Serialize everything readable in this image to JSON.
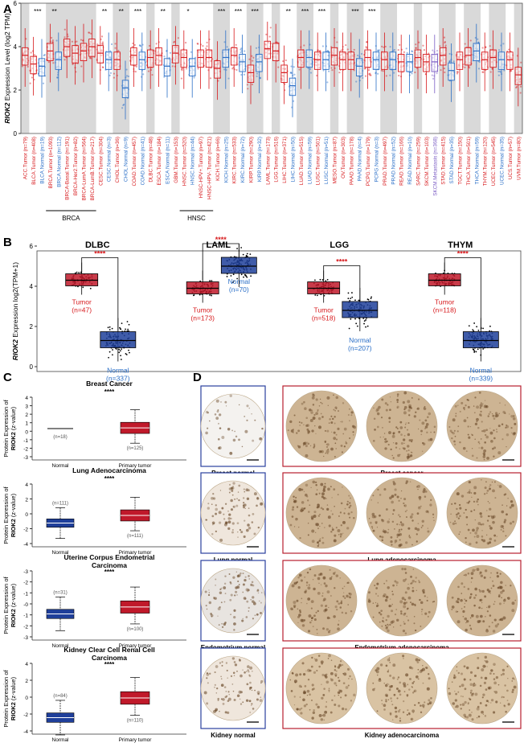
{
  "colors": {
    "tumor": "#d7191c",
    "normal": "#2b6fc7",
    "tumor_dark": "#c0192a",
    "normal_dark": "#1f3f9a",
    "shade": "#d9d9d9",
    "sig": "#d7191c"
  },
  "panel_letters": {
    "a": "A",
    "b": "B",
    "c": "C",
    "d": "D"
  },
  "panel_a": {
    "ylabel_gene": "RIOK2",
    "ylabel_rest": " Expression Level (log2 TPM)",
    "yticks": [
      "0",
      "2",
      "4",
      "6"
    ],
    "group_labels": [
      "BRCA",
      "HNSC"
    ],
    "sig_marks": [
      {
        "pair": 8,
        "text": "***"
      },
      {
        "pair": 9,
        "text": "**"
      },
      {
        "pair": 11,
        "text": "**"
      },
      {
        "pair": 12,
        "text": "**"
      },
      {
        "pair": 14,
        "text": "***"
      },
      {
        "pair": 15,
        "text": "**"
      },
      {
        "pair": 16,
        "text": "*"
      },
      {
        "pair": 17,
        "text": "***"
      },
      {
        "pair": 18,
        "text": "***"
      },
      {
        "pair": 21,
        "text": "***"
      },
      {
        "pair": 23,
        "text": "**"
      },
      {
        "pair": 30,
        "text": "***"
      },
      {
        "pair": 32,
        "text": "***"
      },
      {
        "pair": 34,
        "text": "***"
      },
      {
        "pair": 36,
        "text": "***"
      }
    ],
    "labels": [
      {
        "t": "ACC.Tumor (n=79)",
        "c": "tumor"
      },
      {
        "t": "BLCA.Tumor (n=408)",
        "c": "tumor"
      },
      {
        "t": "BLCA.Normal (n=19)",
        "c": "normal"
      },
      {
        "t": "BRCA.Tumor (n=1093)",
        "c": "tumor"
      },
      {
        "t": "BRCA.Normal (n=112)",
        "c": "normal"
      },
      {
        "t": "BRCA-Basal.Tumor (n=191)",
        "c": "tumor"
      },
      {
        "t": "BRCA-Her2.Tumor (n=82)",
        "c": "tumor"
      },
      {
        "t": "BRCA-LumA.Tumor (n=564)",
        "c": "tumor"
      },
      {
        "t": "BRCA-LumB.Tumor (n=217)",
        "c": "tumor"
      },
      {
        "t": "CESC.Tumor (n=304)",
        "c": "tumor"
      },
      {
        "t": "CESC.Normal (n=3)",
        "c": "normal"
      },
      {
        "t": "CHOL.Tumor (n=36)",
        "c": "tumor"
      },
      {
        "t": "CHOL.Normal (n=9)",
        "c": "normal"
      },
      {
        "t": "COAD.Tumor (n=457)",
        "c": "tumor"
      },
      {
        "t": "COAD.Normal (n=41)",
        "c": "normal"
      },
      {
        "t": "DLBC.Tumor (n=48)",
        "c": "tumor"
      },
      {
        "t": "ESCA.Tumor (n=184)",
        "c": "tumor"
      },
      {
        "t": "ESCA.Normal (n=11)",
        "c": "normal"
      },
      {
        "t": "GBM.Tumor (n=153)",
        "c": "tumor"
      },
      {
        "t": "HNSC.Tumor (n=520)",
        "c": "tumor"
      },
      {
        "t": "HNSC.Normal (n=44)",
        "c": "normal"
      },
      {
        "t": "HNSC-HPV+.Tumor (n=97)",
        "c": "tumor"
      },
      {
        "t": "HNSC-HPV-.Tumor (n=421)",
        "c": "tumor"
      },
      {
        "t": "KICH.Tumor (n=66)",
        "c": "tumor"
      },
      {
        "t": "KICH.Normal (n=25)",
        "c": "normal"
      },
      {
        "t": "KIRC.Tumor (n=533)",
        "c": "tumor"
      },
      {
        "t": "KIRC.Normal (n=72)",
        "c": "normal"
      },
      {
        "t": "KIRP.Tumor (n=290)",
        "c": "tumor"
      },
      {
        "t": "KIRP.Normal (n=32)",
        "c": "normal"
      },
      {
        "t": "LAML.Tumor (n=173)",
        "c": "tumor"
      },
      {
        "t": "LGG.Tumor (n=516)",
        "c": "tumor"
      },
      {
        "t": "LIHC.Tumor (n=371)",
        "c": "tumor"
      },
      {
        "t": "LIHC.Normal (n=50)",
        "c": "normal"
      },
      {
        "t": "LUAD.Tumor (n=515)",
        "c": "tumor"
      },
      {
        "t": "LUAD.Normal (n=59)",
        "c": "normal"
      },
      {
        "t": "LUSC.Tumor (n=501)",
        "c": "tumor"
      },
      {
        "t": "LUSC.Normal (n=51)",
        "c": "normal"
      },
      {
        "t": "MESO.Tumor (n=87)",
        "c": "tumor"
      },
      {
        "t": "OV.Tumor (n=303)",
        "c": "tumor"
      },
      {
        "t": "PAAD.Tumor (n=178)",
        "c": "tumor"
      },
      {
        "t": "PAAD.Normal (n=4)",
        "c": "normal"
      },
      {
        "t": "PCPG.Tumor (n=179)",
        "c": "tumor"
      },
      {
        "t": "PCPG.Normal (n=3)",
        "c": "normal"
      },
      {
        "t": "PRAD.Tumor (n=497)",
        "c": "tumor"
      },
      {
        "t": "PRAD.Normal (n=52)",
        "c": "normal"
      },
      {
        "t": "READ.Tumor (n=166)",
        "c": "tumor"
      },
      {
        "t": "READ.Normal (n=10)",
        "c": "normal"
      },
      {
        "t": "SARC.Tumor (n=259)",
        "c": "tumor"
      },
      {
        "t": "SKCM.Tumor (n=103)",
        "c": "tumor"
      },
      {
        "t": "SKCM.Metastasis (n=368)",
        "c": "meta"
      },
      {
        "t": "STAD.Tumor (n=415)",
        "c": "tumor"
      },
      {
        "t": "STAD.Normal (n=35)",
        "c": "normal"
      },
      {
        "t": "TGCT.Tumor (n=150)",
        "c": "tumor"
      },
      {
        "t": "THCA.Tumor (n=501)",
        "c": "tumor"
      },
      {
        "t": "THCA.Normal (n=59)",
        "c": "normal"
      },
      {
        "t": "THYM.Tumor (n=120)",
        "c": "tumor"
      },
      {
        "t": "UCEC.Tumor (n=545)",
        "c": "tumor"
      },
      {
        "t": "UCEC.Normal (n=35)",
        "c": "normal"
      },
      {
        "t": "UCS.Tumor (n=57)",
        "c": "tumor"
      },
      {
        "t": "UVM.Tumor (n=80)",
        "c": "tumor"
      }
    ]
  },
  "panel_b": {
    "ylabel_gene": "RIOK2",
    "ylabel_rest": " Expression  log2(TPM+1)",
    "yticks": [
      "0",
      "2",
      "4",
      "6"
    ],
    "sig": "****",
    "cancers": [
      {
        "name": "DLBC",
        "tumor_label": "Tumor",
        "tumor_n": "(n=47)",
        "normal_label": "Normal",
        "normal_n": "(n=337)"
      },
      {
        "name": "LAML",
        "tumor_label": "Tumor",
        "tumor_n": "(n=173)",
        "normal_label": "Normal",
        "normal_n": "(n=70)"
      },
      {
        "name": "LGG",
        "tumor_label": "Tumor",
        "tumor_n": "(n=518)",
        "normal_label": "Normal",
        "normal_n": "(n=207)"
      },
      {
        "name": "THYM",
        "tumor_label": "Tumor",
        "tumor_n": "(n=118)",
        "normal_label": "Normal",
        "normal_n": "(n=339)"
      }
    ]
  },
  "panel_c": {
    "ylabel_line1": "Protein Expression of",
    "ylabel_gene": "RIOK2",
    "ylabel_unit": " (z-value)",
    "xlabel_normal": "Normal",
    "xlabel_tumor": "Primary tumor",
    "sig": "****",
    "plots": [
      {
        "title1": "Breast Cancer",
        "title2": "",
        "yticks": [
          "4",
          "3",
          "2",
          "1",
          "0",
          "-1",
          "-2",
          "-3"
        ],
        "n_normal": "(n=18)",
        "n_tumor": "(n=125)"
      },
      {
        "title1": "Lung  Adenocarcinoma",
        "title2": "",
        "yticks": [
          "4",
          "2",
          "0",
          "-2",
          "-4"
        ],
        "n_normal": "(n=111)",
        "n_tumor": "(n=111)"
      },
      {
        "title1": "Uterine Corpus Endometrial",
        "title2": "Carcinoma",
        "yticks": [
          "-3",
          "-2",
          "-1",
          "-0",
          "-1",
          "-2",
          "-3"
        ],
        "n_normal": "(n=31)",
        "n_tumor": "(n=100)"
      },
      {
        "title1": "Kidney Clear Cell Renal Cell",
        "title2": "Carcinoma",
        "yticks": [
          "4",
          "2",
          "0",
          "-2",
          "-4"
        ],
        "n_normal": "(n=84)",
        "n_tumor": "(n=110)"
      }
    ]
  },
  "panel_d": {
    "rows": [
      {
        "normal": "Breast normal",
        "cancer": "Breast cancer"
      },
      {
        "normal": "Lung normal",
        "cancer": "Lung  adenocarcinoma"
      },
      {
        "normal": "Endometrium normal",
        "cancer": "Endometrium adenocarcinoma"
      },
      {
        "normal": "Kidney normal",
        "cancer": "Kidney adenocarcinoma"
      }
    ]
  },
  "chart_data": [
    {
      "type": "box",
      "panel": "A",
      "ylabel": "RIOK2 Expression Level (log2 TPM)",
      "ylim": [
        0,
        6
      ],
      "categories": [
        "ACC.Tumor",
        "BLCA.Tumor",
        "BLCA.Normal",
        "BRCA.Tumor",
        "BRCA.Normal",
        "BRCA-Basal.Tumor",
        "BRCA-Her2.Tumor",
        "BRCA-LumA.Tumor",
        "BRCA-LumB.Tumor",
        "CESC.Tumor",
        "CESC.Normal",
        "CHOL.Tumor",
        "CHOL.Normal",
        "COAD.Tumor",
        "COAD.Normal",
        "DLBC.Tumor",
        "ESCA.Tumor",
        "ESCA.Normal",
        "GBM.Tumor",
        "HNSC.Tumor",
        "HNSC.Normal",
        "HNSC-HPV+.Tumor",
        "HNSC-HPV-.Tumor",
        "KICH.Tumor",
        "KICH.Normal",
        "KIRC.Tumor",
        "KIRC.Normal",
        "KIRP.Tumor",
        "KIRP.Normal",
        "LAML.Tumor",
        "LGG.Tumor",
        "LIHC.Tumor",
        "LIHC.Normal",
        "LUAD.Tumor",
        "LUAD.Normal",
        "LUSC.Tumor",
        "LUSC.Normal",
        "MESO.Tumor",
        "OV.Tumor",
        "PAAD.Tumor",
        "PAAD.Normal",
        "PCPG.Tumor",
        "PCPG.Normal",
        "PRAD.Tumor",
        "PRAD.Normal",
        "READ.Tumor",
        "READ.Normal",
        "SARC.Tumor",
        "SKCM.Tumor",
        "SKCM.Metastasis",
        "STAD.Tumor",
        "STAD.Normal",
        "TGCT.Tumor",
        "THCA.Tumor",
        "THCA.Normal",
        "THYM.Tumor",
        "UCEC.Tumor",
        "UCEC.Normal",
        "UCS.Tumor",
        "UVM.Tumor"
      ],
      "medians": [
        3.6,
        3.2,
        3.1,
        3.8,
        3.4,
        4.0,
        3.7,
        3.8,
        4.0,
        3.7,
        3.4,
        3.4,
        2.1,
        3.6,
        3.4,
        3.5,
        3.6,
        3.1,
        3.7,
        3.5,
        3.1,
        3.5,
        3.5,
        3.0,
        3.5,
        3.6,
        3.3,
        2.8,
        3.3,
        3.9,
        3.8,
        2.8,
        2.2,
        3.5,
        3.5,
        3.4,
        3.4,
        3.6,
        3.4,
        3.4,
        3.1,
        3.5,
        3.4,
        3.4,
        3.4,
        3.3,
        3.3,
        3.5,
        3.3,
        3.3,
        3.6,
        2.9,
        3.4,
        3.6,
        3.8,
        3.4,
        3.5,
        3.4,
        3.4,
        2.7
      ]
    },
    {
      "type": "box",
      "panel": "B",
      "ylabel": "RIOK2 Expression  log2(TPM+1)",
      "ylim": [
        0,
        6
      ],
      "groups": [
        {
          "name": "DLBC",
          "tumor_median": 4.3,
          "normal_median": 1.3
        },
        {
          "name": "LAML",
          "tumor_median": 3.9,
          "normal_median": 5.0
        },
        {
          "name": "LGG",
          "tumor_median": 3.9,
          "normal_median": 2.8
        },
        {
          "name": "THYM",
          "tumor_median": 4.3,
          "normal_median": 1.3
        }
      ]
    },
    {
      "type": "box",
      "panel": "C",
      "ylabel": "Protein Expression of RIOK2 (z-value)",
      "groups": [
        {
          "name": "Breast Cancer",
          "normal_median": 0,
          "tumor_median": 0.1
        },
        {
          "name": "Lung  Adenocarcinoma",
          "normal_median": -1.1,
          "tumor_median": 0.0
        },
        {
          "name": "Uterine Corpus Endometrial Carcinoma",
          "normal_median": -1.1,
          "tumor_median": -0.2
        },
        {
          "name": "Kidney Clear Cell Renal Cell Carcinoma",
          "normal_median": -2.4,
          "tumor_median": 0.1
        }
      ]
    }
  ]
}
